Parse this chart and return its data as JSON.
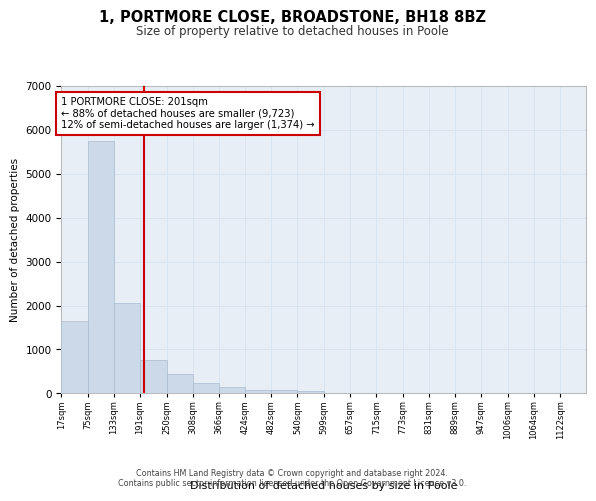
{
  "title": "1, PORTMORE CLOSE, BROADSTONE, BH18 8BZ",
  "subtitle": "Size of property relative to detached houses in Poole",
  "xlabel": "Distribution of detached houses by size in Poole",
  "ylabel": "Number of detached properties",
  "bar_color": "#ccd9e8",
  "bar_edge_color": "#aabcce",
  "grid_color": "#d8e4f0",
  "background_color": "#e8eef5",
  "vline_x": 201,
  "vline_color": "#cc0000",
  "annotation_text": "1 PORTMORE CLOSE: 201sqm\n← 88% of detached houses are smaller (9,723)\n12% of semi-detached houses are larger (1,374) →",
  "bin_edges": [
    17,
    75,
    133,
    191,
    250,
    308,
    366,
    424,
    482,
    540,
    599,
    657,
    715,
    773,
    831,
    889,
    947,
    1006,
    1064,
    1122,
    1180
  ],
  "bin_counts": [
    1650,
    5750,
    2050,
    750,
    430,
    230,
    150,
    85,
    70,
    55,
    0,
    0,
    0,
    0,
    0,
    0,
    0,
    0,
    0,
    0
  ],
  "ylim": [
    0,
    7000
  ],
  "yticks": [
    0,
    1000,
    2000,
    3000,
    4000,
    5000,
    6000,
    7000
  ],
  "footer_line1": "Contains HM Land Registry data © Crown copyright and database right 2024.",
  "footer_line2": "Contains public sector information licensed under the Open Government Licence v3.0."
}
